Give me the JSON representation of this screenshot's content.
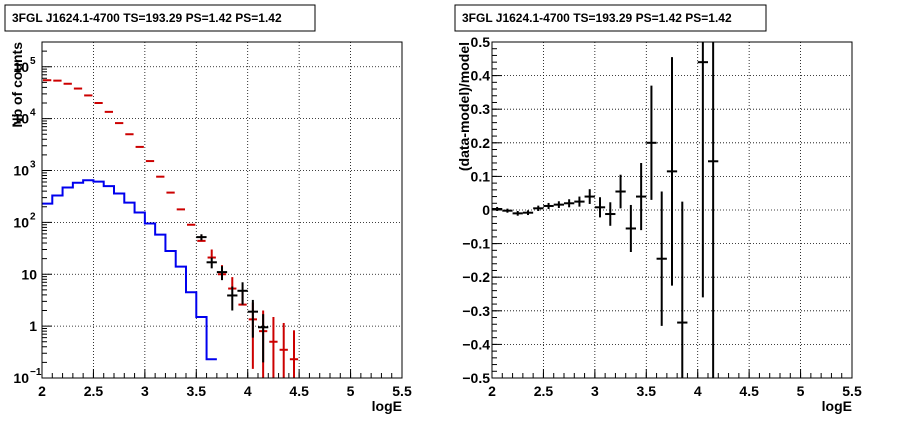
{
  "chart_data": [
    {
      "type": "histogram",
      "title": "3FGL J1624.1-4700 TS=193.29 PS=1.42 PS=1.42",
      "xlabel": "logE",
      "ylabel": "Nb of counts",
      "xlim": [
        2,
        5.5
      ],
      "ylim": [
        0.1,
        300000
      ],
      "yscale": "log",
      "grid": true,
      "x_ticks": [
        "2",
        "2.5",
        "3",
        "3.5",
        "4",
        "4.5",
        "5",
        "5.5"
      ],
      "y_ticks": [
        {
          "value": 0.1,
          "label": "10",
          "exp": "−1"
        },
        {
          "value": 1,
          "label": "1",
          "exp": ""
        },
        {
          "value": 10,
          "label": "10",
          "exp": ""
        },
        {
          "value": 100,
          "label": "10",
          "exp": "2"
        },
        {
          "value": 1000,
          "label": "10",
          "exp": "3"
        },
        {
          "value": 10000,
          "label": "10",
          "exp": "4"
        },
        {
          "value": 100000,
          "label": "10",
          "exp": "5"
        }
      ],
      "bin_width": 0.1,
      "series": [
        {
          "color": "#cc0000",
          "style": "model-markers",
          "x": [
            2.05,
            2.15,
            2.25,
            2.35,
            2.45,
            2.55,
            2.65,
            2.75,
            2.85,
            2.95,
            3.05,
            3.15,
            3.25,
            3.35,
            3.45,
            3.55,
            3.65,
            3.75,
            3.85,
            3.95,
            4.05,
            4.15,
            4.25,
            4.35,
            4.45
          ],
          "values": [
            55000,
            54000,
            47000,
            38000,
            28000,
            20000,
            13500,
            8200,
            5000,
            2850,
            1520,
            760,
            375,
            178,
            90,
            44,
            21,
            10,
            5.3,
            2.6,
            1.35,
            0.8,
            0.5,
            0.35,
            0.23
          ],
          "err_low": [
            0,
            0,
            0,
            0,
            0,
            0,
            0,
            0,
            0,
            0,
            0,
            0,
            0,
            0,
            0,
            0,
            0,
            0,
            0,
            0,
            1.2,
            0.7,
            0.45,
            0.32,
            0.21
          ],
          "err_high": [
            0,
            0,
            0,
            0,
            0,
            0,
            0,
            0,
            0,
            0,
            0,
            0,
            0,
            0,
            0,
            14,
            9,
            5,
            3.5,
            2.2,
            1.5,
            1.2,
            1.0,
            0.8,
            0.6
          ]
        },
        {
          "color": "#000000",
          "style": "data-points",
          "x": [
            3.55,
            3.65,
            3.75,
            3.85,
            3.95,
            4.05,
            4.15
          ],
          "values": [
            52,
            17,
            11,
            3.9,
            4.8,
            1.9,
            0.95
          ],
          "err_low": [
            7,
            4,
            3.3,
            1.9,
            2.2,
            1.3,
            0.75
          ],
          "err_high": [
            7,
            4,
            3.3,
            1.9,
            2.2,
            1.3,
            0.75
          ]
        },
        {
          "color": "#0000ee",
          "style": "step",
          "x_edges": [
            2.0,
            2.1,
            2.2,
            2.3,
            2.4,
            2.5,
            2.6,
            2.7,
            2.8,
            2.9,
            3.0,
            3.1,
            3.2,
            3.3,
            3.4,
            3.5,
            3.6,
            3.7
          ],
          "values": [
            230,
            330,
            470,
            580,
            650,
            610,
            500,
            360,
            240,
            155,
            95,
            58,
            28,
            14,
            4.5,
            1.5,
            0.23
          ]
        }
      ]
    },
    {
      "type": "scatter",
      "title": "3FGL J1624.1-4700 TS=193.29 PS=1.42 PS=1.42",
      "xlabel": "logE",
      "ylabel": "(data-model)/model",
      "xlim": [
        2,
        5.5
      ],
      "ylim": [
        -0.5,
        0.5
      ],
      "grid": true,
      "x_ticks": [
        "2",
        "2.5",
        "3",
        "3.5",
        "4",
        "4.5",
        "5",
        "5.5"
      ],
      "y_ticks": [
        "−0.5",
        "−0.4",
        "−0.3",
        "−0.2",
        "−0.1",
        "0",
        "0.1",
        "0.2",
        "0.3",
        "0.4",
        "0.5"
      ],
      "bin_width": 0.1,
      "points": {
        "x": [
          2.05,
          2.15,
          2.25,
          2.35,
          2.45,
          2.55,
          2.65,
          2.75,
          2.85,
          2.95,
          3.05,
          3.15,
          3.25,
          3.35,
          3.45,
          3.55,
          3.65,
          3.75,
          3.85,
          4.05,
          4.15
        ],
        "y": [
          0.003,
          -0.002,
          -0.01,
          -0.008,
          0.005,
          0.012,
          0.016,
          0.02,
          0.025,
          0.04,
          0.008,
          -0.012,
          0.055,
          -0.055,
          0.04,
          0.2,
          -0.145,
          0.115,
          -0.335,
          0.44,
          0.145
        ],
        "err": [
          0.006,
          0.006,
          0.007,
          0.007,
          0.008,
          0.009,
          0.01,
          0.012,
          0.015,
          0.022,
          0.03,
          0.035,
          0.05,
          0.07,
          0.1,
          0.17,
          0.2,
          0.34,
          0.36,
          0.7,
          0.9
        ]
      }
    }
  ]
}
